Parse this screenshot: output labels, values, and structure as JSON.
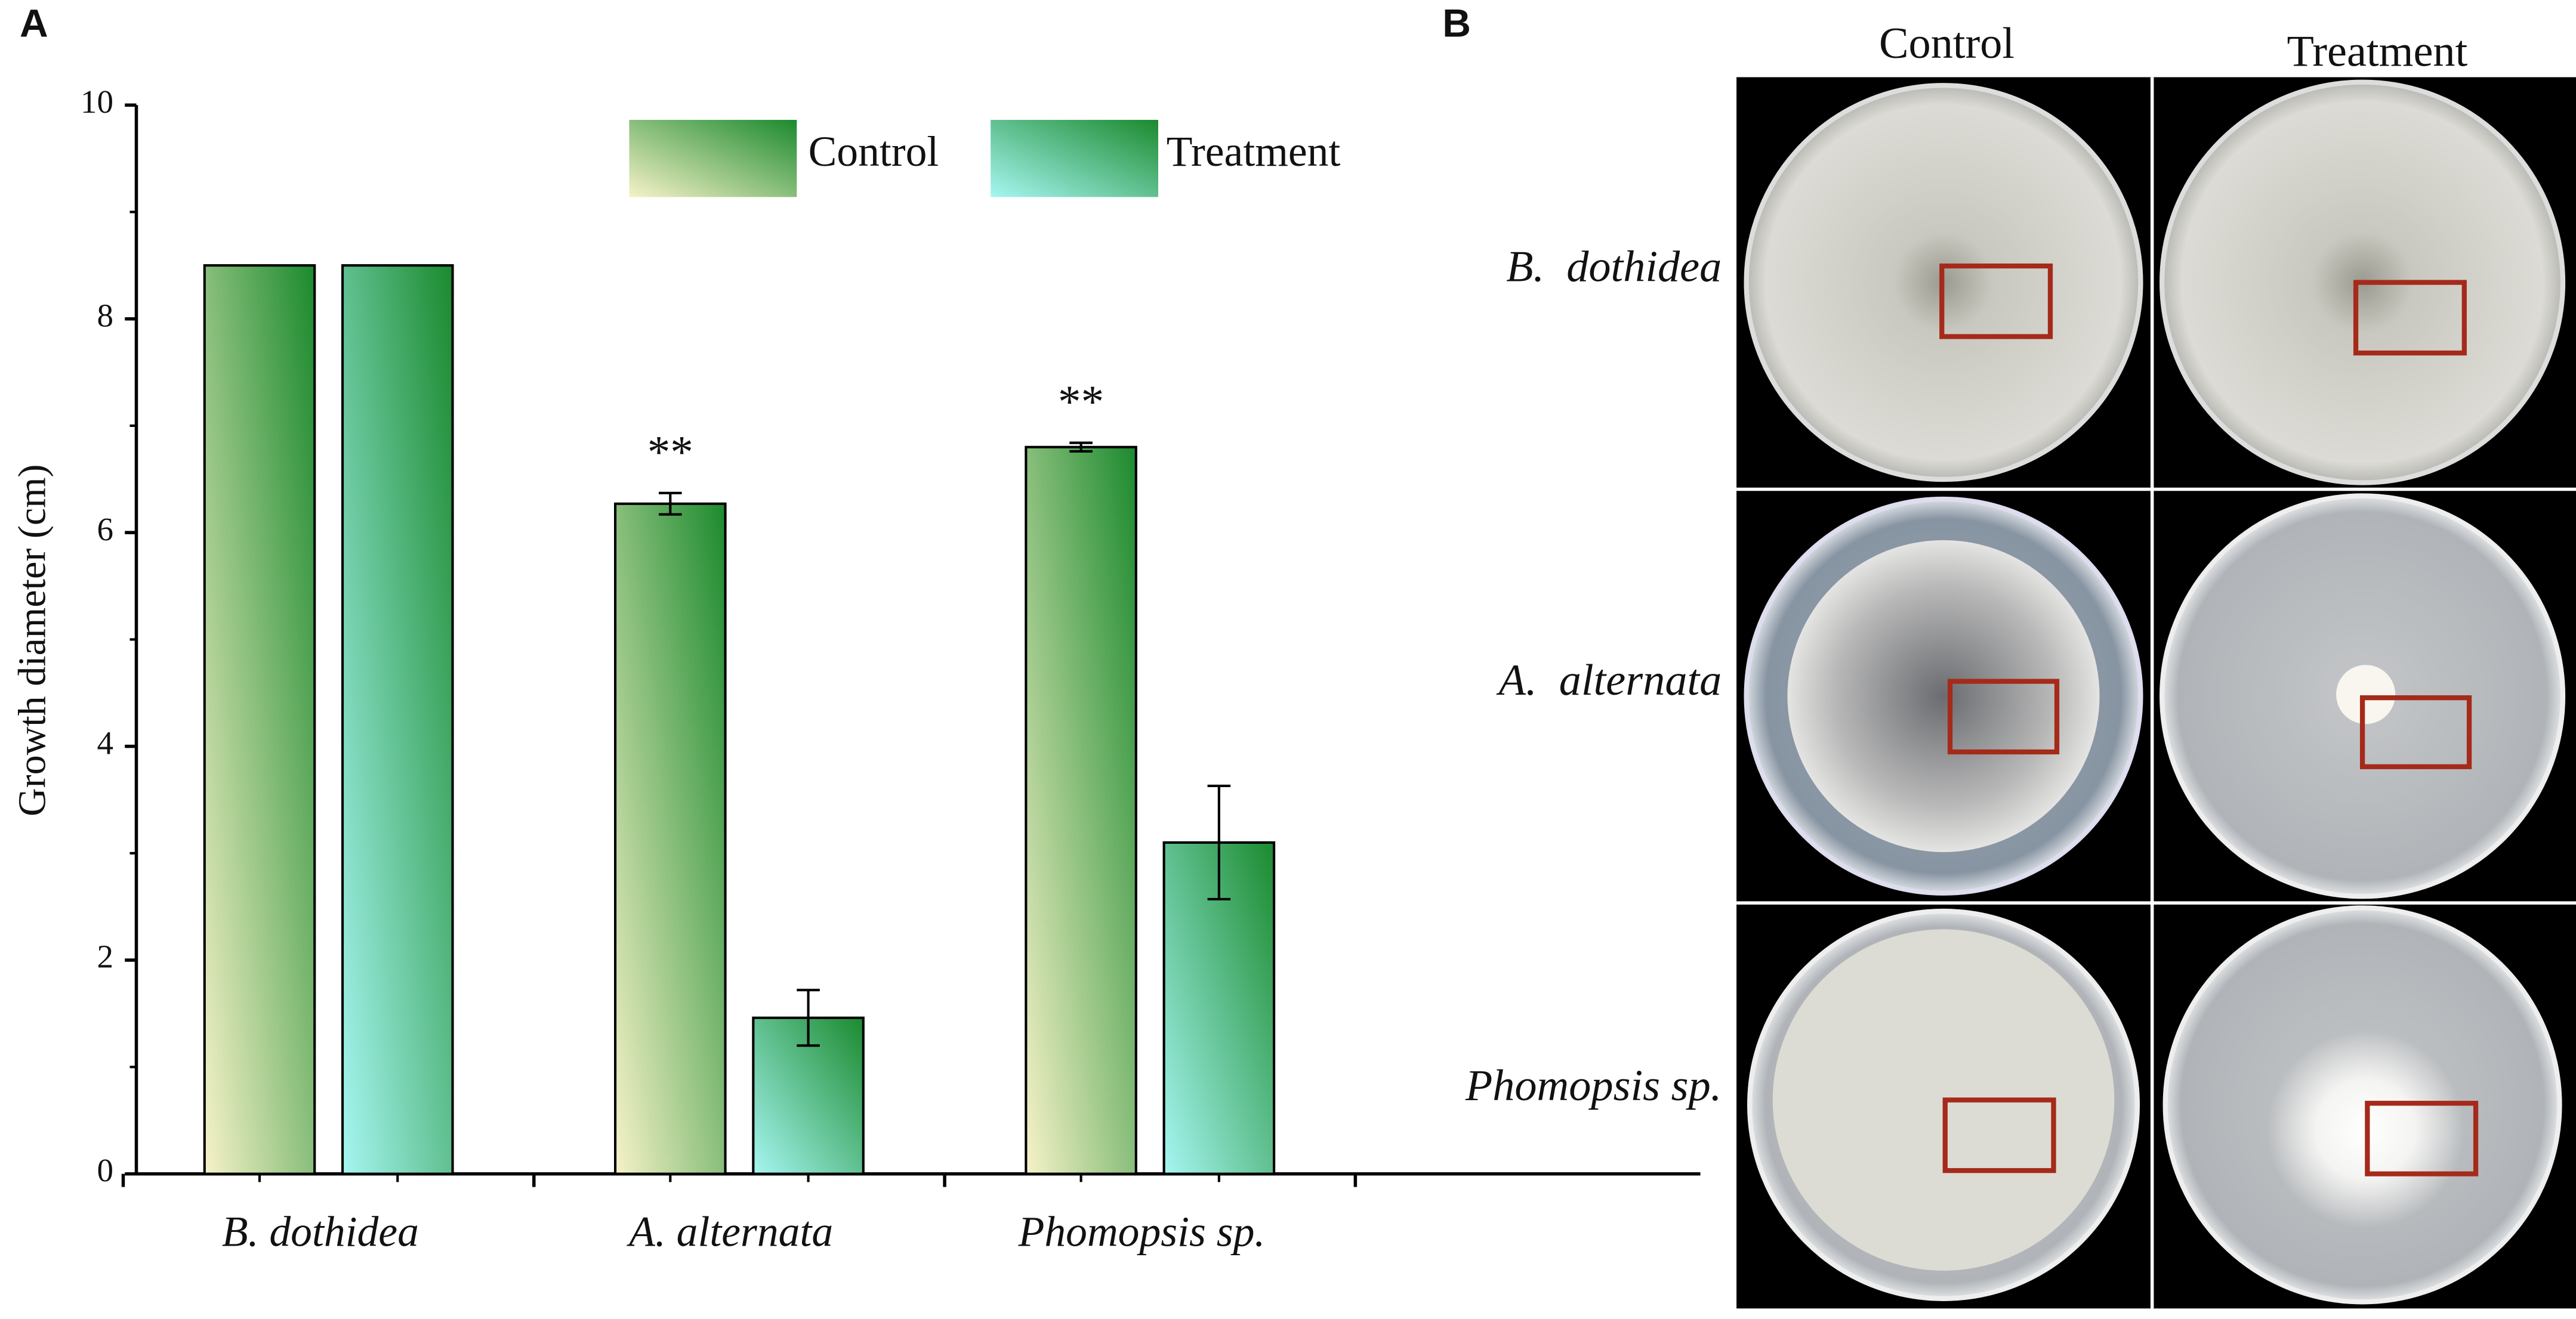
{
  "chart_data": {
    "type": "bar",
    "panel_label": "A",
    "y_label": "Growth diameter (cm)",
    "categories": [
      "B. dothidea",
      "A. alternata",
      "Phomopsis sp."
    ],
    "series": [
      {
        "name": "Control",
        "colors": [
          "#f6f2c8",
          "#1b8a2e"
        ],
        "values": [
          8.5,
          6.27,
          6.8
        ],
        "errors": [
          null,
          0.1,
          0.04
        ]
      },
      {
        "name": "Treatment",
        "colors": [
          "#a6f6f2",
          "#1b8a2e"
        ],
        "values": [
          8.5,
          1.46,
          3.1
        ],
        "errors": [
          null,
          0.26,
          0.53
        ]
      }
    ],
    "significance": [
      null,
      "**",
      "**"
    ],
    "ylim": [
      0,
      10
    ],
    "yticks": [
      0,
      2,
      4,
      6,
      8,
      10
    ]
  },
  "panel_b": {
    "label": "B",
    "columns": [
      "Control",
      "Treatment"
    ],
    "rows": [
      "B.  dothidea",
      "A.  alternata",
      "Phomopsis sp."
    ]
  }
}
